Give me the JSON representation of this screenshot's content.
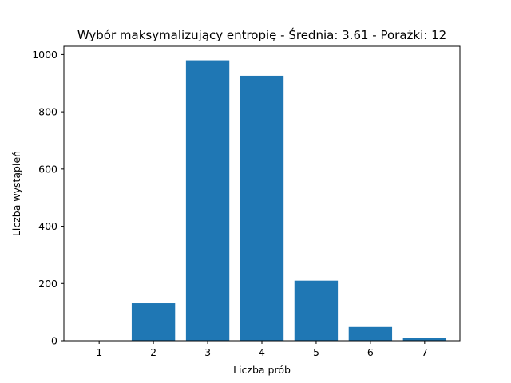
{
  "colors": {
    "bar": "#1f77b4",
    "axis": "#000000",
    "background": "#ffffff"
  },
  "chart_data": {
    "type": "bar",
    "title": "Wybór maksymalizujący entropię - Średnia: 3.61 - Porażki: 12",
    "xlabel": "Liczba prób",
    "ylabel": "Liczba wystąpień",
    "categories": [
      "1",
      "2",
      "3",
      "4",
      "5",
      "6",
      "7"
    ],
    "x": [
      1,
      2,
      3,
      4,
      5,
      6,
      7
    ],
    "values": [
      0,
      131,
      980,
      926,
      210,
      48,
      11
    ],
    "xlim": [
      0.35,
      7.65
    ],
    "ylim": [
      0,
      1029
    ],
    "yticks": [
      0,
      200,
      400,
      600,
      800,
      1000
    ],
    "grid": false,
    "legend": "none"
  }
}
